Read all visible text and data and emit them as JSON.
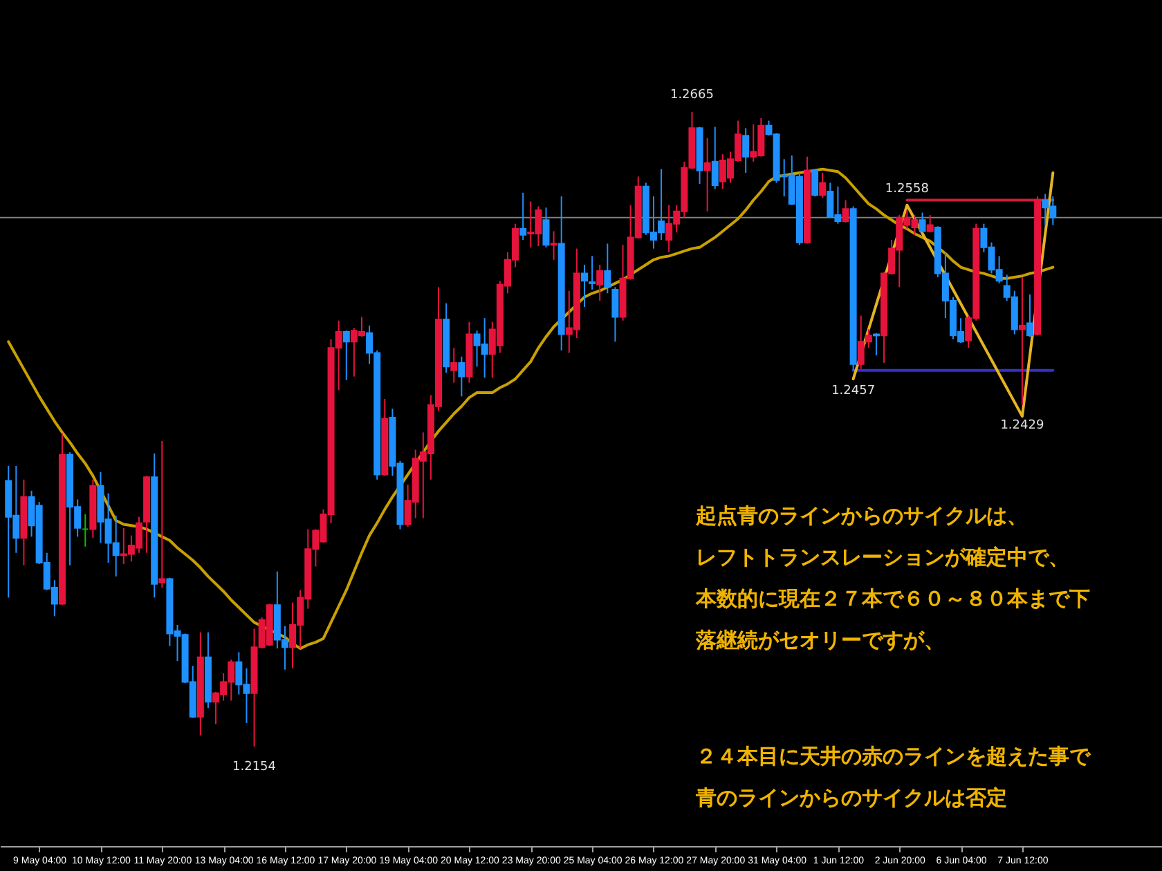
{
  "chart_data": {
    "type": "candlestick",
    "categories": [
      null,
      null,
      null,
      null,
      "9 May 04:00",
      null,
      null,
      null,
      null,
      null,
      null,
      null,
      "10 May 12:00",
      null,
      null,
      null,
      null,
      null,
      null,
      null,
      "11 May 20:00",
      null,
      null,
      null,
      null,
      null,
      null,
      null,
      "13 May 04:00",
      null,
      null,
      null,
      null,
      null,
      null,
      null,
      "16 May 12:00",
      null,
      null,
      null,
      null,
      null,
      null,
      null,
      "17 May 20:00",
      null,
      null,
      null,
      null,
      null,
      null,
      null,
      "19 May 04:00",
      null,
      null,
      null,
      null,
      null,
      null,
      null,
      "20 May 12:00",
      null,
      null,
      null,
      null,
      null,
      null,
      null,
      "23 May 20:00",
      null,
      null,
      null,
      null,
      null,
      null,
      null,
      "25 May 04:00",
      null,
      null,
      null,
      null,
      null,
      null,
      null,
      "26 May 12:00",
      null,
      null,
      null,
      null,
      null,
      null,
      null,
      "27 May 20:00",
      null,
      null,
      null,
      null,
      null,
      null,
      null,
      "31 May 04:00",
      null,
      null,
      null,
      null,
      null,
      null,
      null,
      "1 Jun 12:00",
      null,
      null,
      null,
      null,
      null,
      null,
      null,
      "2 Jun 20:00",
      null,
      null,
      null,
      null,
      null,
      null,
      null,
      "6 Jun 04:00",
      null,
      null,
      null,
      null,
      null,
      null,
      null,
      "7 Jun 12:00",
      null,
      null,
      null,
      null
    ],
    "ohlc": [
      [
        1.2368,
        1.238,
        1.2274,
        1.2339
      ],
      [
        1.234,
        1.238,
        1.231,
        1.2322
      ],
      [
        1.2322,
        1.2369,
        1.23,
        1.2355
      ],
      [
        1.2355,
        1.236,
        1.2323,
        1.2332
      ],
      [
        1.2348,
        1.2351,
        1.2301,
        1.2302
      ],
      [
        1.2302,
        1.231,
        1.228,
        1.2281
      ],
      [
        1.2282,
        1.2288,
        1.2259,
        1.2269
      ],
      [
        1.2269,
        1.2406,
        1.2268,
        1.2389
      ],
      [
        1.2389,
        1.2391,
        1.23,
        1.2347
      ],
      [
        1.2347,
        1.2353,
        1.2323,
        1.233
      ],
      [
        1.2329,
        1.2341,
        1.2315,
        1.2329
      ],
      [
        1.2329,
        1.2369,
        1.2322,
        1.2364
      ],
      [
        1.2364,
        1.2375,
        1.2318,
        1.2335
      ],
      [
        1.2337,
        1.2358,
        1.2302,
        1.2318
      ],
      [
        1.2318,
        1.234,
        1.2291,
        1.2308
      ],
      [
        1.2308,
        1.233,
        1.2301,
        1.2309
      ],
      [
        1.2309,
        1.2324,
        1.2303,
        1.2316
      ],
      [
        1.2314,
        1.2339,
        1.231,
        1.2334
      ],
      [
        1.2335,
        1.2372,
        1.231,
        1.2371
      ],
      [
        1.2371,
        1.239,
        1.2274,
        1.2285
      ],
      [
        1.2286,
        1.24,
        1.2282,
        1.2289
      ],
      [
        1.2289,
        1.229,
        1.2235,
        1.2245
      ],
      [
        1.2247,
        1.2252,
        1.2223,
        1.2243
      ],
      [
        1.2244,
        1.2245,
        1.2205,
        1.2206
      ],
      [
        1.2206,
        1.2219,
        1.2177,
        1.2178
      ],
      [
        1.2178,
        1.2246,
        1.2163,
        1.2226
      ],
      [
        1.2226,
        1.2246,
        1.2185,
        1.219
      ],
      [
        1.219,
        1.2198,
        1.2172,
        1.2197
      ],
      [
        1.2196,
        1.2213,
        1.2191,
        1.2206
      ],
      [
        1.2206,
        1.2224,
        1.2191,
        1.2222
      ],
      [
        1.2222,
        1.223,
        1.2196,
        1.2204
      ],
      [
        1.2204,
        1.2217,
        1.2173,
        1.2197
      ],
      [
        1.2197,
        1.2249,
        1.2154,
        1.2234
      ],
      [
        1.2234,
        1.2258,
        1.2233,
        1.2256
      ],
      [
        1.2236,
        1.2269,
        1.2235,
        1.2268
      ],
      [
        1.2268,
        1.2295,
        1.2233,
        1.224
      ],
      [
        1.224,
        1.2251,
        1.2216,
        1.2234
      ],
      [
        1.2234,
        1.227,
        1.2217,
        1.2252
      ],
      [
        1.2252,
        1.228,
        1.2233,
        1.2274
      ],
      [
        1.2273,
        1.2329,
        1.2265,
        1.2313
      ],
      [
        1.2313,
        1.2329,
        1.2299,
        1.2328
      ],
      [
        1.2319,
        1.2345,
        1.2318,
        1.2341
      ],
      [
        1.2341,
        1.2482,
        1.2334,
        1.2475
      ],
      [
        1.2475,
        1.2497,
        1.2441,
        1.2488
      ],
      [
        1.2488,
        1.2489,
        1.2449,
        1.248
      ],
      [
        1.248,
        1.2491,
        1.2452,
        1.2489
      ],
      [
        1.2485,
        1.25,
        1.2484,
        1.2488
      ],
      [
        1.2487,
        1.2493,
        1.2462,
        1.2471
      ],
      [
        1.2471,
        1.2473,
        1.2369,
        1.2373
      ],
      [
        1.2373,
        1.2434,
        1.2372,
        1.2418
      ],
      [
        1.2419,
        1.2426,
        1.2372,
        1.238
      ],
      [
        1.2382,
        1.2384,
        1.2329,
        1.2333
      ],
      [
        1.2333,
        1.2365,
        1.2331,
        1.2352
      ],
      [
        1.2351,
        1.2393,
        1.2338,
        1.2386
      ],
      [
        1.2384,
        1.2407,
        1.2338,
        1.2391
      ],
      [
        1.239,
        1.2437,
        1.2369,
        1.2429
      ],
      [
        1.2428,
        1.2524,
        1.2424,
        1.2498
      ],
      [
        1.2498,
        1.2511,
        1.2455,
        1.246
      ],
      [
        1.2457,
        1.2475,
        1.2447,
        1.2463
      ],
      [
        1.2463,
        1.2468,
        1.2436,
        1.2452
      ],
      [
        1.2452,
        1.2496,
        1.2447,
        1.2486
      ],
      [
        1.2486,
        1.2489,
        1.246,
        1.2477
      ],
      [
        1.2478,
        1.2499,
        1.2451,
        1.247
      ],
      [
        1.247,
        1.2496,
        1.2451,
        1.249
      ],
      [
        1.2477,
        1.2529,
        1.2471,
        1.2526
      ],
      [
        1.2525,
        1.2552,
        1.2519,
        1.2546
      ],
      [
        1.2546,
        1.2575,
        1.254,
        1.2571
      ],
      [
        1.2571,
        1.26,
        1.2562,
        1.2566
      ],
      [
        1.2567,
        1.2593,
        1.2556,
        1.2568
      ],
      [
        1.2567,
        1.2589,
        1.2557,
        1.2586
      ],
      [
        1.2578,
        1.2588,
        1.2556,
        1.2558
      ],
      [
        1.2558,
        1.2569,
        1.2546,
        1.2559
      ],
      [
        1.2559,
        1.2597,
        1.2473,
        1.2486
      ],
      [
        1.2486,
        1.2521,
        1.2471,
        1.2491
      ],
      [
        1.249,
        1.2555,
        1.2483,
        1.2535
      ],
      [
        1.2535,
        1.2542,
        1.2508,
        1.2529
      ],
      [
        1.2528,
        1.2549,
        1.2522,
        1.2527
      ],
      [
        1.2526,
        1.2542,
        1.2513,
        1.2537
      ],
      [
        1.2537,
        1.2559,
        1.2519,
        1.2524
      ],
      [
        1.2522,
        1.2524,
        1.248,
        1.25
      ],
      [
        1.25,
        1.2558,
        1.2497,
        1.2531
      ],
      [
        1.2531,
        1.259,
        1.253,
        1.2564
      ],
      [
        1.2564,
        1.2613,
        1.2563,
        1.2605
      ],
      [
        1.2605,
        1.2608,
        1.2566,
        1.2568
      ],
      [
        1.2568,
        1.2597,
        1.2555,
        1.2562
      ],
      [
        1.2577,
        1.2619,
        1.2562,
        1.2568
      ],
      [
        1.2562,
        1.259,
        1.2552,
        1.2575
      ],
      [
        1.2575,
        1.259,
        1.2568,
        1.2585
      ],
      [
        1.2585,
        1.2625,
        1.258,
        1.262
      ],
      [
        1.262,
        1.2665,
        1.2619,
        1.2652
      ],
      [
        1.2652,
        1.2653,
        1.2607,
        1.2618
      ],
      [
        1.2618,
        1.2644,
        1.2585,
        1.2624
      ],
      [
        1.2625,
        1.2653,
        1.2603,
        1.2606
      ],
      [
        1.2609,
        1.2631,
        1.2603,
        1.2626
      ],
      [
        1.2612,
        1.2633,
        1.2608,
        1.2627
      ],
      [
        1.2626,
        1.2658,
        1.2625,
        1.2647
      ],
      [
        1.2646,
        1.2652,
        1.2616,
        1.2629
      ],
      [
        1.2629,
        1.2655,
        1.2625,
        1.2633
      ],
      [
        1.263,
        1.266,
        1.2629,
        1.2654
      ],
      [
        1.2654,
        1.2658,
        1.2646,
        1.2647
      ],
      [
        1.2647,
        1.2648,
        1.2608,
        1.261
      ],
      [
        1.2614,
        1.2627,
        1.2597,
        1.2613
      ],
      [
        1.2614,
        1.263,
        1.259,
        1.2591
      ],
      [
        1.2613,
        1.2616,
        1.2558,
        1.256
      ],
      [
        1.256,
        1.2629,
        1.2559,
        1.2618
      ],
      [
        1.2618,
        1.2619,
        1.2597,
        1.2598
      ],
      [
        1.2598,
        1.2616,
        1.2596,
        1.2608
      ],
      [
        1.2601,
        1.2608,
        1.258,
        1.2581
      ],
      [
        1.2582,
        1.2605,
        1.2575,
        1.2577
      ],
      [
        1.2577,
        1.2594,
        1.2576,
        1.2587
      ],
      [
        1.2587,
        1.2589,
        1.2457,
        1.2462
      ],
      [
        1.2462,
        1.2501,
        1.2458,
        1.248
      ],
      [
        1.248,
        1.249,
        1.2475,
        1.2485
      ],
      [
        1.2486,
        1.2487,
        1.2469,
        1.2485
      ],
      [
        1.2485,
        1.2536,
        1.2463,
        1.2535
      ],
      [
        1.2535,
        1.2562,
        1.2534,
        1.2555
      ],
      [
        1.2554,
        1.2582,
        1.2524,
        1.258
      ],
      [
        1.2574,
        1.2586,
        1.2571,
        1.258
      ],
      [
        1.2572,
        1.2582,
        1.2566,
        1.2578
      ],
      [
        1.2578,
        1.2584,
        1.2568,
        1.2569
      ],
      [
        1.2569,
        1.2582,
        1.2568,
        1.2574
      ],
      [
        1.2572,
        1.2573,
        1.2532,
        1.2535
      ],
      [
        1.2535,
        1.2552,
        1.2499,
        1.2513
      ],
      [
        1.2513,
        1.2516,
        1.2482,
        1.2485
      ],
      [
        1.2488,
        1.2499,
        1.2479,
        1.248
      ],
      [
        1.2481,
        1.2501,
        1.2475,
        1.2499
      ],
      [
        1.2499,
        1.2575,
        1.2497,
        1.2571
      ],
      [
        1.2571,
        1.2575,
        1.2552,
        1.2556
      ],
      [
        1.2556,
        1.256,
        1.2535,
        1.2538
      ],
      [
        1.2538,
        1.2549,
        1.2527,
        1.2529
      ],
      [
        1.2525,
        1.2534,
        1.2513,
        1.2516
      ],
      [
        1.2516,
        1.2521,
        1.2486,
        1.249
      ],
      [
        1.249,
        1.2532,
        1.2429,
        1.2493
      ],
      [
        1.2495,
        1.2518,
        1.2484,
        1.2485
      ],
      [
        1.2486,
        1.2597,
        1.2485,
        1.2594
      ],
      [
        1.2594,
        1.2599,
        1.2574,
        1.2588
      ],
      [
        1.2589,
        1.2597,
        1.2574,
        1.258
      ]
    ],
    "colors": [
      "#1e90ff",
      "#1e90ff",
      "#e6143c",
      "#1e90ff",
      "#1e90ff",
      "#1e90ff",
      "#1e90ff",
      "#e6143c",
      "#1e90ff",
      "#1e90ff",
      "#00c000",
      "#e6143c",
      "#1e90ff",
      "#1e90ff",
      "#1e90ff",
      "#e6143c",
      "#e6143c",
      "#e6143c",
      "#e6143c",
      "#1e90ff",
      "#e6143c",
      "#1e90ff",
      "#1e90ff",
      "#1e90ff",
      "#1e90ff",
      "#e6143c",
      "#1e90ff",
      "#e6143c",
      "#e6143c",
      "#e6143c",
      "#1e90ff",
      "#1e90ff",
      "#e6143c",
      "#e6143c",
      "#e6143c",
      "#1e90ff",
      "#1e90ff",
      "#e6143c",
      "#e6143c",
      "#e6143c",
      "#e6143c",
      "#e6143c",
      "#e6143c",
      "#e6143c",
      "#1e90ff",
      "#e6143c",
      "#e6143c",
      "#1e90ff",
      "#1e90ff",
      "#e6143c",
      "#1e90ff",
      "#1e90ff",
      "#e6143c",
      "#e6143c",
      "#e6143c",
      "#e6143c",
      "#e6143c",
      "#1e90ff",
      "#e6143c",
      "#1e90ff",
      "#e6143c",
      "#1e90ff",
      "#1e90ff",
      "#e6143c",
      "#e6143c",
      "#e6143c",
      "#e6143c",
      "#1e90ff",
      "#e6143c",
      "#e6143c",
      "#1e90ff",
      "#e6143c",
      "#1e90ff",
      "#e6143c",
      "#e6143c",
      "#1e90ff",
      "#1e90ff",
      "#e6143c",
      "#1e90ff",
      "#1e90ff",
      "#e6143c",
      "#e6143c",
      "#e6143c",
      "#1e90ff",
      "#1e90ff",
      "#1e90ff",
      "#e6143c",
      "#e6143c",
      "#e6143c",
      "#e6143c",
      "#1e90ff",
      "#e6143c",
      "#1e90ff",
      "#e6143c",
      "#e6143c",
      "#e6143c",
      "#1e90ff",
      "#e6143c",
      "#e6143c",
      "#1e90ff",
      "#1e90ff",
      "#1e90ff",
      "#1e90ff",
      "#1e90ff",
      "#e6143c",
      "#1e90ff",
      "#e6143c",
      "#1e90ff",
      "#1e90ff",
      "#e6143c",
      "#1e90ff",
      "#e6143c",
      "#e6143c",
      "#1e90ff",
      "#e6143c",
      "#e6143c",
      "#e6143c",
      "#e6143c",
      "#e6143c",
      "#1e90ff",
      "#e6143c",
      "#1e90ff",
      "#1e90ff",
      "#1e90ff",
      "#1e90ff",
      "#e6143c",
      "#e6143c",
      "#1e90ff",
      "#1e90ff",
      "#1e90ff",
      "#1e90ff",
      "#1e90ff",
      "#e6143c",
      "#1e90ff",
      "#e6143c",
      "#1e90ff",
      "#1e90ff"
    ],
    "series": [
      {
        "type": "line",
        "color": "#c8a000",
        "values": [
          1.248,
          1.2469,
          1.2458,
          1.2447,
          1.2436,
          1.2426,
          1.2416,
          1.2407,
          1.2399,
          1.239,
          1.2382,
          1.2372,
          1.236,
          1.2348,
          1.2336,
          1.2333,
          1.2332,
          1.2331,
          1.2329,
          1.2326,
          1.2323,
          1.232,
          1.2314,
          1.2309,
          1.2304,
          1.2298,
          1.2291,
          1.2285,
          1.2279,
          1.2272,
          1.2266,
          1.226,
          1.2254,
          1.2251,
          1.2248,
          1.2245,
          1.2242,
          1.2237,
          1.2233,
          1.2236,
          1.2238,
          1.2241,
          1.2254,
          1.2267,
          1.228,
          1.2295,
          1.231,
          1.2324,
          1.2334,
          1.2345,
          1.2355,
          1.2364,
          1.2373,
          1.2382,
          1.2391,
          1.24,
          1.2408,
          1.2415,
          1.2422,
          1.2428,
          1.2435,
          1.2439,
          1.2439,
          1.2439,
          1.2443,
          1.2446,
          1.245,
          1.2457,
          1.2464,
          1.2475,
          1.2484,
          1.2492,
          1.2498,
          1.2504,
          1.251,
          1.2516,
          1.2519,
          1.2521,
          1.2524,
          1.2527,
          1.253,
          1.2534,
          1.2538,
          1.2542,
          1.2546,
          1.2548,
          1.2549,
          1.2551,
          1.2553,
          1.2555,
          1.2556,
          1.256,
          1.2564,
          1.2569,
          1.2574,
          1.2579,
          1.2586,
          1.2594,
          1.2601,
          1.2609,
          1.2613,
          1.2614,
          1.2615,
          1.2616,
          1.2617,
          1.2618,
          1.2619,
          1.2618,
          1.2617,
          1.2612,
          1.2605,
          1.2598,
          1.2591,
          1.2587,
          1.2582,
          1.2578,
          1.2574,
          1.2571,
          1.2567,
          1.2564,
          1.2561,
          1.2556,
          1.2551,
          1.2545,
          1.254,
          1.2538,
          1.2536,
          1.2535,
          1.2533,
          1.2531,
          1.2531,
          1.2532,
          1.2533,
          1.2535,
          1.2536,
          1.2538,
          1.254
        ]
      },
      {
        "type": "line",
        "color": "#c81e32",
        "name": "1.2558",
        "values": [
          null,
          null,
          null,
          null,
          null,
          null,
          null,
          null,
          null,
          null,
          null,
          null,
          null,
          null,
          null,
          null,
          null,
          null,
          null,
          null,
          null,
          null,
          null,
          null,
          null,
          null,
          null,
          null,
          null,
          null,
          null,
          null,
          null,
          null,
          null,
          null,
          null,
          null,
          null,
          null,
          null,
          null,
          null,
          null,
          null,
          null,
          null,
          null,
          null,
          null,
          null,
          null,
          null,
          null,
          null,
          null,
          null,
          null,
          null,
          null,
          null,
          null,
          null,
          null,
          null,
          null,
          null,
          null,
          null,
          null,
          null,
          null,
          null,
          null,
          null,
          null,
          null,
          null,
          null,
          null,
          null,
          null,
          null,
          null,
          null,
          null,
          null,
          null,
          null,
          null,
          null,
          null,
          null,
          null,
          null,
          null,
          null,
          null,
          null,
          null,
          null,
          null,
          null,
          null,
          null,
          null,
          null,
          null,
          null,
          null,
          null,
          null,
          null,
          null,
          null,
          null,
          null,
          1.2594,
          1.2594,
          1.2594,
          1.2594,
          1.2594,
          1.2594,
          1.2594,
          1.2594,
          1.2594,
          1.2594,
          1.2594,
          1.2594,
          1.2594,
          1.2594,
          1.2594,
          1.2594,
          1.2594,
          1.2594,
          1.2594,
          1.2594
        ]
      },
      {
        "type": "line",
        "color": "#3232c8",
        "values": [
          null,
          null,
          null,
          null,
          null,
          null,
          null,
          null,
          null,
          null,
          null,
          null,
          null,
          null,
          null,
          null,
          null,
          null,
          null,
          null,
          null,
          null,
          null,
          null,
          null,
          null,
          null,
          null,
          null,
          null,
          null,
          null,
          null,
          null,
          null,
          null,
          null,
          null,
          null,
          null,
          null,
          null,
          null,
          null,
          null,
          null,
          null,
          null,
          null,
          null,
          null,
          null,
          null,
          null,
          null,
          null,
          null,
          null,
          null,
          null,
          null,
          null,
          null,
          null,
          null,
          null,
          null,
          null,
          null,
          null,
          null,
          null,
          null,
          null,
          null,
          null,
          null,
          null,
          null,
          null,
          null,
          null,
          null,
          null,
          null,
          null,
          null,
          null,
          null,
          null,
          null,
          null,
          null,
          null,
          null,
          null,
          null,
          null,
          null,
          null,
          null,
          null,
          null,
          null,
          null,
          null,
          null,
          null,
          null,
          null,
          1.2457,
          1.2457,
          1.2457,
          1.2457,
          1.2457,
          1.2457,
          1.2457,
          1.2457,
          1.2457,
          1.2457,
          1.2457,
          1.2457,
          1.2457,
          1.2457,
          1.2457,
          1.2457,
          1.2457,
          1.2457,
          1.2457,
          1.2457,
          1.2457,
          1.2457,
          1.2457,
          1.2457,
          1.2457,
          1.2457,
          1.2457
        ]
      },
      {
        "type": "line",
        "color": "#e6b422",
        "values": [
          null,
          null,
          null,
          null,
          null,
          null,
          null,
          null,
          null,
          null,
          null,
          null,
          null,
          null,
          null,
          null,
          null,
          null,
          null,
          null,
          null,
          null,
          null,
          null,
          null,
          null,
          null,
          null,
          null,
          null,
          null,
          null,
          null,
          null,
          null,
          null,
          null,
          null,
          null,
          null,
          null,
          null,
          null,
          null,
          null,
          null,
          null,
          null,
          null,
          null,
          null,
          null,
          null,
          null,
          null,
          null,
          null,
          null,
          null,
          null,
          null,
          null,
          null,
          null,
          null,
          null,
          null,
          null,
          null,
          null,
          null,
          null,
          null,
          null,
          null,
          null,
          null,
          null,
          null,
          null,
          null,
          null,
          null,
          null,
          null,
          null,
          null,
          null,
          null,
          null,
          null,
          null,
          null,
          null,
          null,
          null,
          null,
          null,
          null,
          null,
          null,
          null,
          null,
          null,
          null,
          null,
          null,
          null,
          null,
          null,
          1.245,
          null,
          null,
          null,
          null,
          null,
          null,
          1.259,
          null,
          null,
          null,
          null,
          null,
          null,
          null,
          null,
          null,
          null,
          null,
          null,
          null,
          null,
          1.242,
          null,
          null,
          null,
          1.2616
        ]
      }
    ],
    "ref_lines": [
      {
        "axis": "y",
        "value": 1.258,
        "label": null,
        "color": "#808080"
      }
    ],
    "tick_labels": "x",
    "annotations": [
      {
        "text": "1.2665",
        "y": 1.2665
      },
      {
        "text": "1.2457",
        "y": 1.2457
      },
      {
        "text": "1.2429",
        "y": 1.2429
      },
      {
        "text": "1.2154",
        "y": 1.2154
      },
      "起点青のラインからのサイクルは、",
      "レフトトランスレーションが確定中で、",
      "本数的に現在２７本で６０～８０本まで下",
      "落継続がセオリーですが、",
      "２４本目に天井の赤のラインを超えた事で",
      "青のラインからのサイクルは否定"
    ]
  }
}
